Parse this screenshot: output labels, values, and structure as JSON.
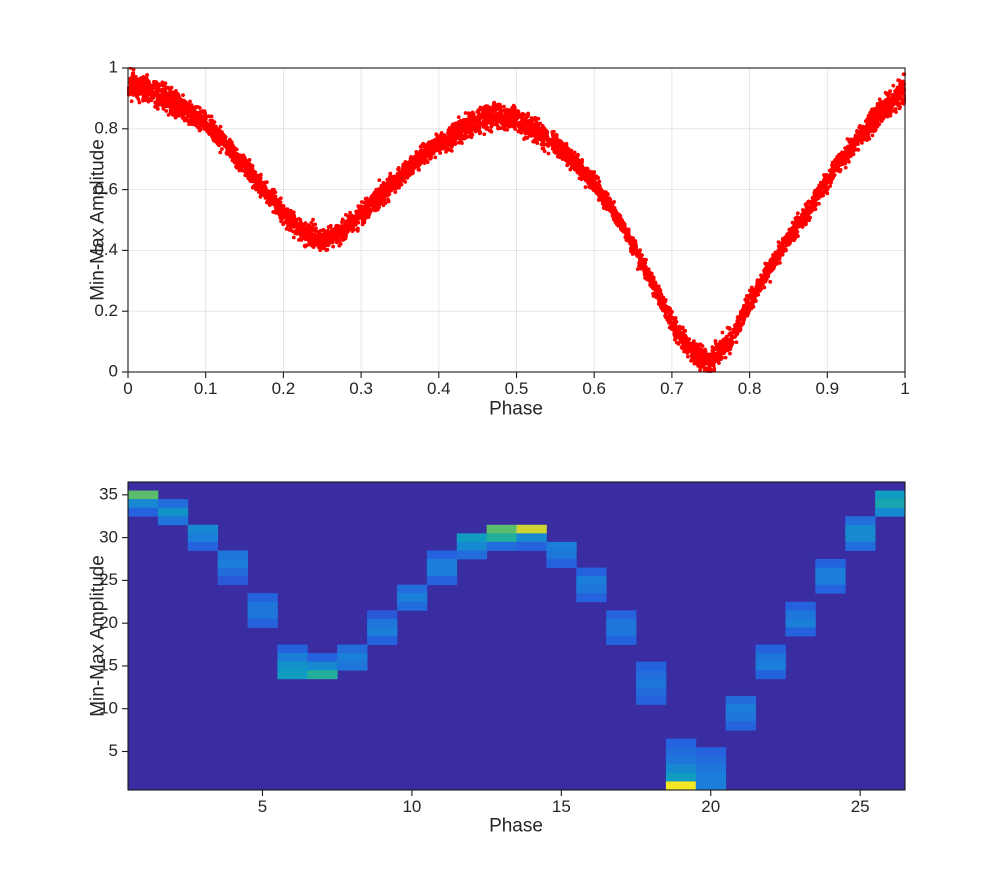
{
  "figure": {
    "background": "#ffffff",
    "text_color": "#262626",
    "axis_color": "#1a1a1a"
  },
  "chart_data": [
    {
      "type": "scatter",
      "title": "",
      "xlabel": "Phase",
      "ylabel": "Min-Max Amplitude",
      "xlim": [
        0,
        1
      ],
      "ylim": [
        0,
        1
      ],
      "xticks": [
        0,
        0.1,
        0.2,
        0.3,
        0.4,
        0.5,
        0.6,
        0.7,
        0.8,
        0.9,
        1
      ],
      "xtick_labels": [
        "0",
        "0.1",
        "0.2",
        "0.3",
        "0.4",
        "0.5",
        "0.6",
        "0.7",
        "0.8",
        "0.9",
        "1"
      ],
      "yticks": [
        0,
        0.2,
        0.4,
        0.6,
        0.8,
        1
      ],
      "ytick_labels": [
        "0",
        "0.2",
        "0.4",
        "0.6",
        "0.8",
        "1"
      ],
      "grid": true,
      "legend": null,
      "marker_color": "#ff0000",
      "n_points": 6000,
      "curve": {
        "phase": [
          0,
          0.025,
          0.05,
          0.075,
          0.1,
          0.125,
          0.15,
          0.175,
          0.2,
          0.225,
          0.25,
          0.275,
          0.3,
          0.325,
          0.35,
          0.375,
          0.4,
          0.425,
          0.45,
          0.475,
          0.5,
          0.525,
          0.55,
          0.575,
          0.6,
          0.625,
          0.65,
          0.675,
          0.7,
          0.725,
          0.75,
          0.775,
          0.8,
          0.825,
          0.85,
          0.875,
          0.9,
          0.925,
          0.95,
          0.975,
          1
        ],
        "amplitude_mean": [
          0.95,
          0.93,
          0.9,
          0.86,
          0.82,
          0.75,
          0.68,
          0.6,
          0.52,
          0.46,
          0.43,
          0.46,
          0.52,
          0.58,
          0.64,
          0.7,
          0.75,
          0.79,
          0.83,
          0.85,
          0.83,
          0.79,
          0.75,
          0.69,
          0.62,
          0.53,
          0.42,
          0.29,
          0.16,
          0.07,
          0.03,
          0.1,
          0.23,
          0.34,
          0.44,
          0.53,
          0.63,
          0.72,
          0.8,
          0.87,
          0.93
        ],
        "band_halfwidth": [
          0.055,
          0.052,
          0.048,
          0.043,
          0.04,
          0.037,
          0.035,
          0.037,
          0.04,
          0.044,
          0.046,
          0.043,
          0.04,
          0.038,
          0.038,
          0.04,
          0.043,
          0.047,
          0.05,
          0.05,
          0.048,
          0.045,
          0.042,
          0.038,
          0.036,
          0.035,
          0.035,
          0.037,
          0.04,
          0.045,
          0.05,
          0.045,
          0.04,
          0.037,
          0.036,
          0.036,
          0.037,
          0.04,
          0.044,
          0.05,
          0.055
        ]
      }
    },
    {
      "type": "heatmap",
      "title": "",
      "xlabel": "Phase",
      "ylabel": "Min-Max Amplitude",
      "xlim": [
        0.5,
        26.5
      ],
      "ylim": [
        0.5,
        36.5
      ],
      "cols": 26,
      "rows": 36,
      "xticks": [
        5,
        10,
        15,
        20,
        25
      ],
      "xtick_labels": [
        "5",
        "10",
        "15",
        "20",
        "25"
      ],
      "yticks": [
        5,
        10,
        15,
        20,
        25,
        30,
        35
      ],
      "ytick_labels": [
        "5",
        "10",
        "15",
        "20",
        "25",
        "30",
        "35"
      ],
      "grid": false,
      "background_value": 0,
      "colormap": {
        "name": "parula",
        "stops": [
          [
            0,
            "#3a2da1"
          ],
          [
            0.15,
            "#3346cf"
          ],
          [
            0.3,
            "#2562dd"
          ],
          [
            0.45,
            "#1b7fd9"
          ],
          [
            0.6,
            "#0f9cc0"
          ],
          [
            0.7,
            "#23ae9b"
          ],
          [
            0.8,
            "#5bbc6e"
          ],
          [
            0.9,
            "#a8c43f"
          ],
          [
            1,
            "#f5e626"
          ]
        ]
      },
      "cells": [
        [
          1,
          35,
          0.8
        ],
        [
          1,
          34,
          0.5
        ],
        [
          1,
          33,
          0.3
        ],
        [
          2,
          34,
          0.35
        ],
        [
          2,
          33,
          0.55
        ],
        [
          2,
          32,
          0.4
        ],
        [
          3,
          31,
          0.5
        ],
        [
          3,
          30,
          0.45
        ],
        [
          3,
          29,
          0.3
        ],
        [
          4,
          28,
          0.4
        ],
        [
          4,
          27,
          0.45
        ],
        [
          4,
          26,
          0.35
        ],
        [
          4,
          25,
          0.25
        ],
        [
          5,
          23,
          0.3
        ],
        [
          5,
          22,
          0.4
        ],
        [
          5,
          21,
          0.4
        ],
        [
          5,
          20,
          0.3
        ],
        [
          6,
          17,
          0.3
        ],
        [
          6,
          16,
          0.45
        ],
        [
          6,
          15,
          0.55
        ],
        [
          6,
          14,
          0.6
        ],
        [
          7,
          16,
          0.3
        ],
        [
          7,
          15,
          0.5
        ],
        [
          7,
          14,
          0.7
        ],
        [
          8,
          17,
          0.35
        ],
        [
          8,
          16,
          0.45
        ],
        [
          8,
          15,
          0.4
        ],
        [
          9,
          21,
          0.25
        ],
        [
          9,
          20,
          0.4
        ],
        [
          9,
          19,
          0.45
        ],
        [
          9,
          18,
          0.3
        ],
        [
          10,
          24,
          0.35
        ],
        [
          10,
          23,
          0.45
        ],
        [
          10,
          22,
          0.35
        ],
        [
          11,
          28,
          0.3
        ],
        [
          11,
          27,
          0.45
        ],
        [
          11,
          26,
          0.45
        ],
        [
          11,
          25,
          0.3
        ],
        [
          12,
          30,
          0.6
        ],
        [
          12,
          29,
          0.5
        ],
        [
          12,
          28,
          0.35
        ],
        [
          13,
          31,
          0.8
        ],
        [
          13,
          30,
          0.7
        ],
        [
          13,
          29,
          0.35
        ],
        [
          14,
          31,
          0.95
        ],
        [
          14,
          30,
          0.5
        ],
        [
          14,
          29,
          0.3
        ],
        [
          15,
          29,
          0.45
        ],
        [
          15,
          28,
          0.4
        ],
        [
          15,
          27,
          0.3
        ],
        [
          16,
          26,
          0.3
        ],
        [
          16,
          25,
          0.45
        ],
        [
          16,
          24,
          0.4
        ],
        [
          16,
          23,
          0.3
        ],
        [
          17,
          21,
          0.3
        ],
        [
          17,
          20,
          0.4
        ],
        [
          17,
          19,
          0.4
        ],
        [
          17,
          18,
          0.3
        ],
        [
          18,
          15,
          0.3
        ],
        [
          18,
          14,
          0.35
        ],
        [
          18,
          13,
          0.4
        ],
        [
          18,
          12,
          0.35
        ],
        [
          18,
          11,
          0.3
        ],
        [
          19,
          6,
          0.3
        ],
        [
          19,
          5,
          0.35
        ],
        [
          19,
          4,
          0.4
        ],
        [
          19,
          3,
          0.5
        ],
        [
          19,
          2,
          0.6
        ],
        [
          19,
          1,
          1
        ],
        [
          20,
          1,
          0.45
        ],
        [
          20,
          2,
          0.45
        ],
        [
          20,
          3,
          0.4
        ],
        [
          20,
          4,
          0.35
        ],
        [
          20,
          5,
          0.3
        ],
        [
          21,
          11,
          0.35
        ],
        [
          21,
          10,
          0.45
        ],
        [
          21,
          9,
          0.4
        ],
        [
          21,
          8,
          0.3
        ],
        [
          22,
          17,
          0.3
        ],
        [
          22,
          16,
          0.4
        ],
        [
          22,
          15,
          0.45
        ],
        [
          22,
          14,
          0.3
        ],
        [
          23,
          22,
          0.3
        ],
        [
          23,
          21,
          0.4
        ],
        [
          23,
          20,
          0.45
        ],
        [
          23,
          19,
          0.3
        ],
        [
          24,
          27,
          0.3
        ],
        [
          24,
          26,
          0.45
        ],
        [
          24,
          25,
          0.45
        ],
        [
          24,
          24,
          0.3
        ],
        [
          25,
          32,
          0.35
        ],
        [
          25,
          31,
          0.5
        ],
        [
          25,
          30,
          0.5
        ],
        [
          25,
          29,
          0.35
        ],
        [
          26,
          35,
          0.6
        ],
        [
          26,
          34,
          0.65
        ],
        [
          26,
          33,
          0.5
        ]
      ]
    }
  ]
}
